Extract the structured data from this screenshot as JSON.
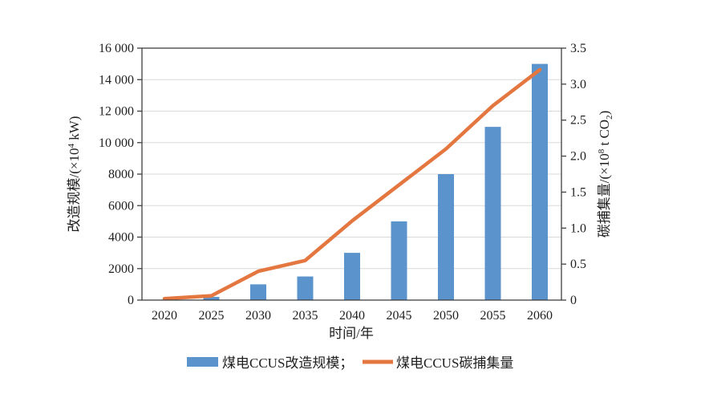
{
  "chart_data": {
    "type": "bar+line dual-axis",
    "categories": [
      "2020",
      "2025",
      "2030",
      "2035",
      "2040",
      "2045",
      "2050",
      "2055",
      "2060"
    ],
    "series": [
      {
        "name": "煤电CCUS改造规模",
        "type": "bar",
        "axis": "left",
        "color": "#5b93cd",
        "values": [
          0,
          200,
          1000,
          1500,
          3000,
          5000,
          8000,
          11000,
          15000
        ]
      },
      {
        "name": "煤电CCUS碳捕集量",
        "type": "line",
        "axis": "right",
        "color": "#e4763f",
        "values": [
          0.02,
          0.06,
          0.4,
          0.55,
          1.1,
          1.6,
          2.1,
          2.7,
          3.2
        ]
      }
    ],
    "left_axis": {
      "title_prefix": "改造规模/(×10",
      "title_sup": "4",
      "title_suffix": " kW)",
      "min": 0,
      "max": 16000,
      "tick_step": 2000,
      "tick_labels": [
        "0",
        "2000",
        "4000",
        "6000",
        "8000",
        "10 000",
        "12 000",
        "14 000",
        "16 000"
      ]
    },
    "right_axis": {
      "title_prefix": "碳捕集量/(×10",
      "title_sup": "8",
      "title_mid": " t CO",
      "title_sub": "2",
      "title_suffix": ")",
      "min": 0,
      "max": 3.5,
      "tick_step": 0.5,
      "tick_labels": [
        "0",
        "0.5",
        "1.0",
        "1.5",
        "2.0",
        "2.5",
        "3.0",
        "3.5"
      ]
    },
    "x_axis": {
      "title": "时间/年"
    },
    "legend": [
      {
        "label": "煤电CCUS改造规模；",
        "swatch": "bar"
      },
      {
        "label": "煤电CCUS碳捕集量",
        "swatch": "line"
      }
    ],
    "grid": true,
    "colors": {
      "bar": "#5b93cd",
      "line": "#e4763f",
      "gridline": "#d9d9d9",
      "axis_box": "#404040",
      "text": "#1f1f1f"
    }
  }
}
